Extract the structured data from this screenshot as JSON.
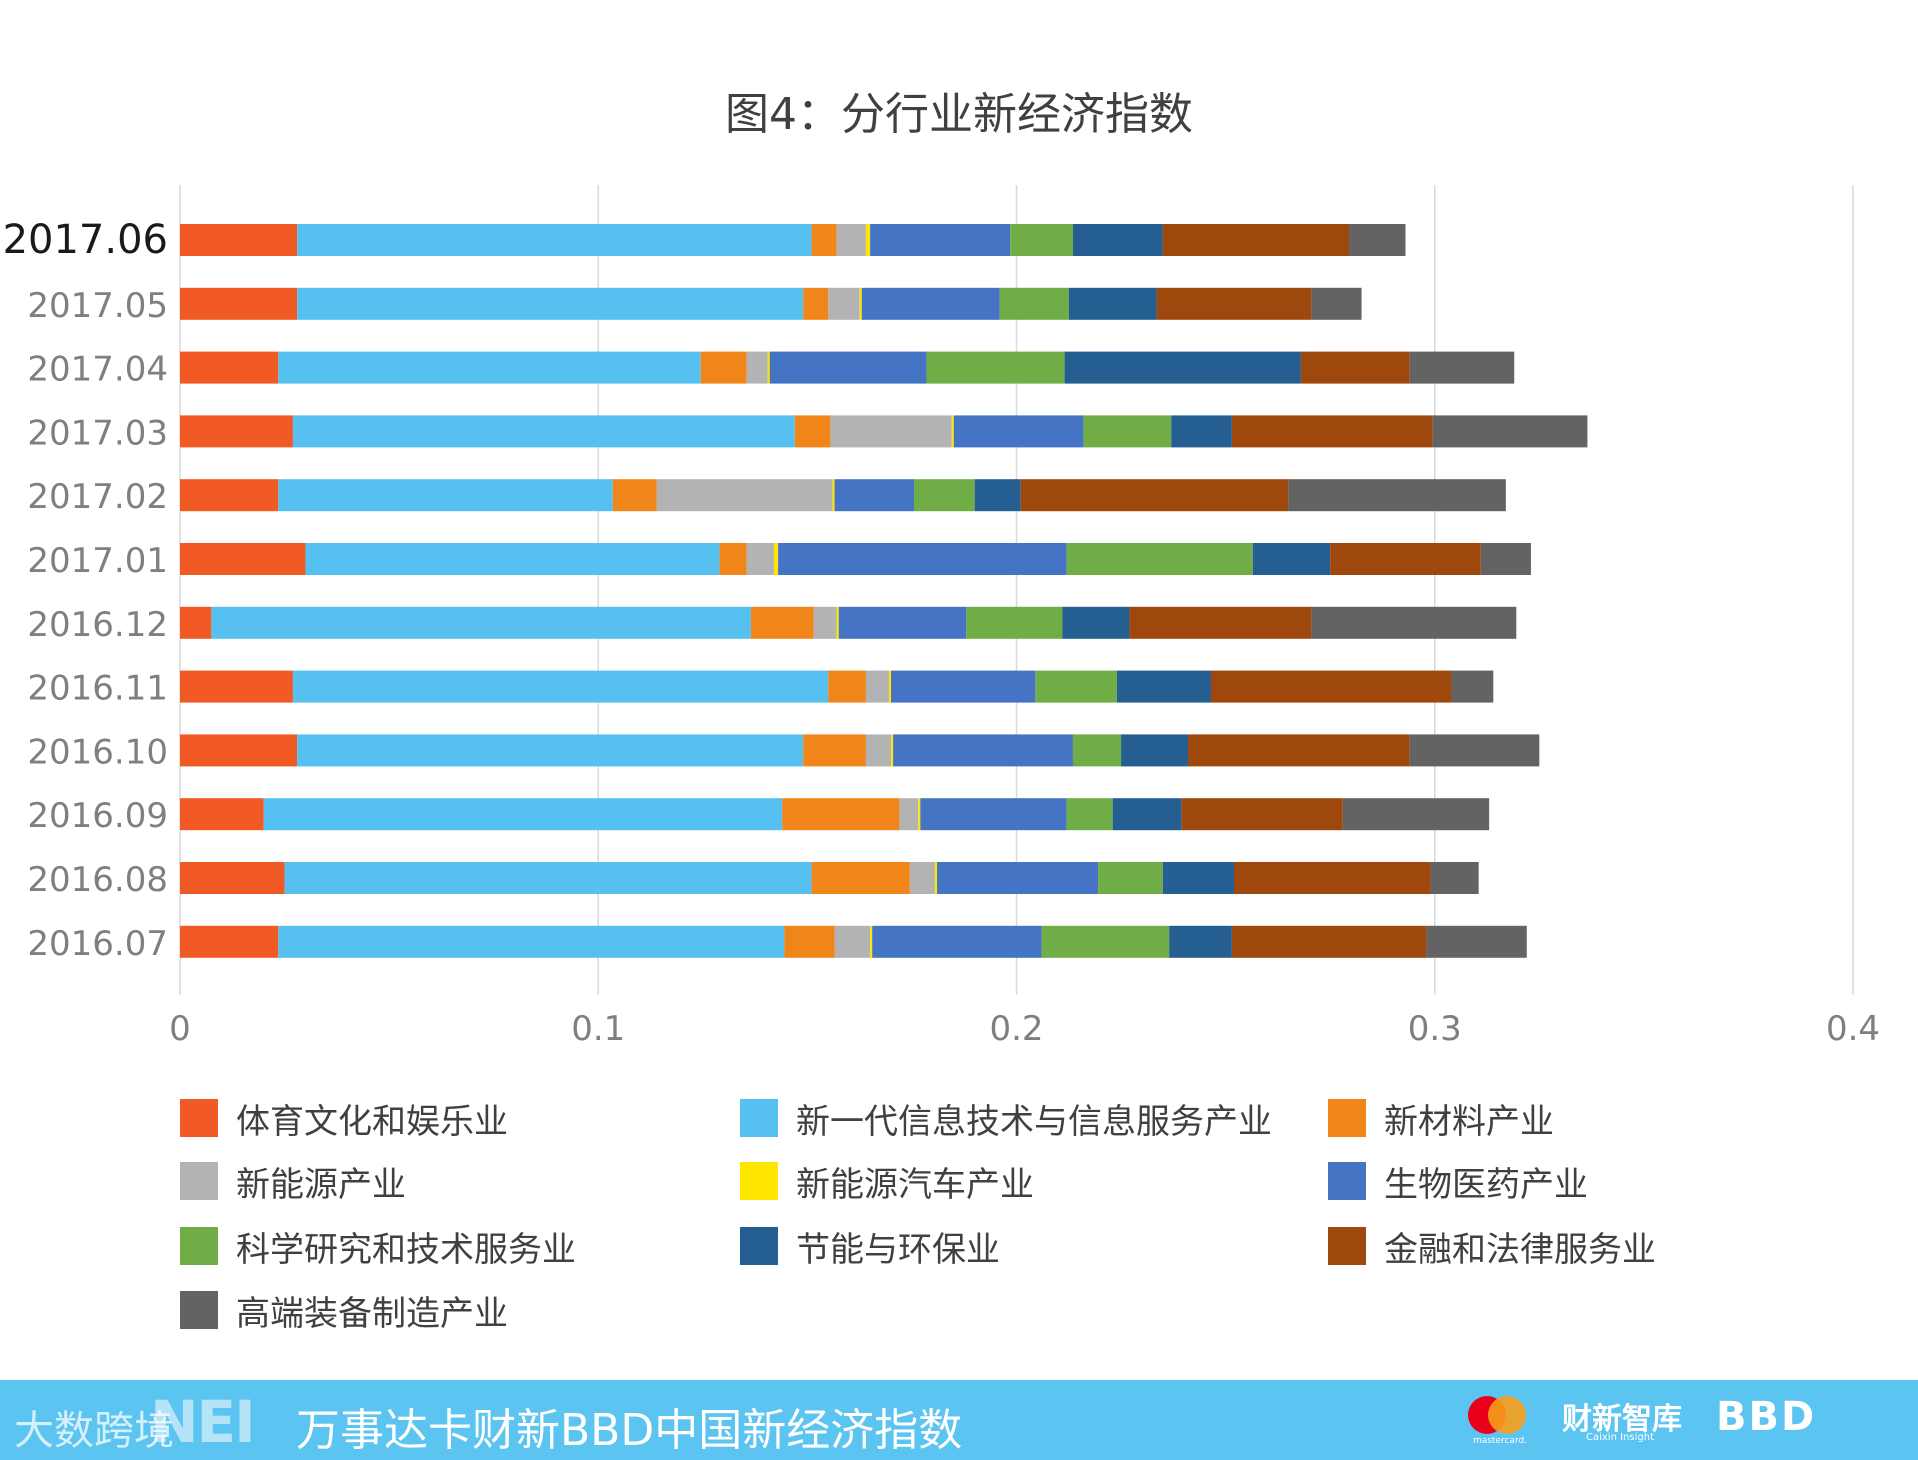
{
  "chart_data": {
    "type": "bar",
    "orientation": "horizontal",
    "stacked": true,
    "title": "图4：分行业新经济指数",
    "xlim": [
      0,
      0.4
    ],
    "xticks": [
      "0",
      "0.1",
      "0.2",
      "0.3",
      "0.4"
    ],
    "xtick_values": [
      0,
      0.1,
      0.2,
      0.3,
      0.4
    ],
    "grid": true,
    "legend_position": "bottom",
    "categories": [
      "2017.06",
      "2017.05",
      "2017.04",
      "2017.03",
      "2017.02",
      "2017.01",
      "2016.12",
      "2016.11",
      "2016.10",
      "2016.09",
      "2016.08",
      "2016.07"
    ],
    "series": [
      {
        "name": "体育文化和娱乐业",
        "color": "#f15a24",
        "values": [
          0.028,
          0.028,
          0.0235,
          0.027,
          0.0235,
          0.03,
          0.0075,
          0.027,
          0.028,
          0.02,
          0.025,
          0.0235
        ]
      },
      {
        "name": "新一代信息技术与信息服务产业",
        "color": "#56c1f0",
        "values": [
          0.123,
          0.121,
          0.101,
          0.12,
          0.08,
          0.099,
          0.129,
          0.128,
          0.121,
          0.124,
          0.126,
          0.121
        ]
      },
      {
        "name": "新材料产业",
        "color": "#f08519",
        "values": [
          0.006,
          0.006,
          0.011,
          0.0085,
          0.0105,
          0.0065,
          0.015,
          0.009,
          0.015,
          0.028,
          0.0235,
          0.012
        ]
      },
      {
        "name": "新能源产业",
        "color": "#b3b3b3",
        "values": [
          0.007,
          0.0075,
          0.005,
          0.029,
          0.042,
          0.0065,
          0.0055,
          0.0055,
          0.006,
          0.0045,
          0.006,
          0.0085
        ]
      },
      {
        "name": "新能源汽车产业",
        "color": "#ffe600",
        "values": [
          0.001,
          0.0005,
          0.0005,
          0.0005,
          0.0005,
          0.001,
          0.0005,
          0.0005,
          0.0005,
          0.0005,
          0.0005,
          0.0005
        ]
      },
      {
        "name": "生物医药产业",
        "color": "#4674c5",
        "values": [
          0.0335,
          0.033,
          0.0375,
          0.031,
          0.019,
          0.069,
          0.0305,
          0.0345,
          0.043,
          0.035,
          0.0385,
          0.0405
        ]
      },
      {
        "name": "科学研究和技术服务业",
        "color": "#70ad47",
        "values": [
          0.015,
          0.0165,
          0.033,
          0.021,
          0.0145,
          0.0445,
          0.023,
          0.0195,
          0.0115,
          0.011,
          0.0155,
          0.0305
        ]
      },
      {
        "name": "节能与环保业",
        "color": "#255e91",
        "values": [
          0.0215,
          0.021,
          0.0565,
          0.0145,
          0.011,
          0.0185,
          0.016,
          0.0225,
          0.016,
          0.0165,
          0.017,
          0.015
        ]
      },
      {
        "name": "金融和法律服务业",
        "color": "#9e480e",
        "values": [
          0.0445,
          0.037,
          0.026,
          0.048,
          0.064,
          0.036,
          0.0435,
          0.0575,
          0.053,
          0.0385,
          0.047,
          0.0465
        ]
      },
      {
        "name": "高端装备制造产业",
        "color": "#636363",
        "values": [
          0.0135,
          0.012,
          0.025,
          0.037,
          0.052,
          0.012,
          0.049,
          0.01,
          0.031,
          0.035,
          0.0115,
          0.024
        ]
      }
    ]
  },
  "footer": {
    "watermark": "大数跨境",
    "brand_mark": "NEI",
    "title": "万事达卡财新BBD中国新经济指数",
    "mastercard_text": "mastercard.",
    "caixin": "财新智库",
    "caixin_sub": "Caixin Insight",
    "bbd": "BBD"
  }
}
